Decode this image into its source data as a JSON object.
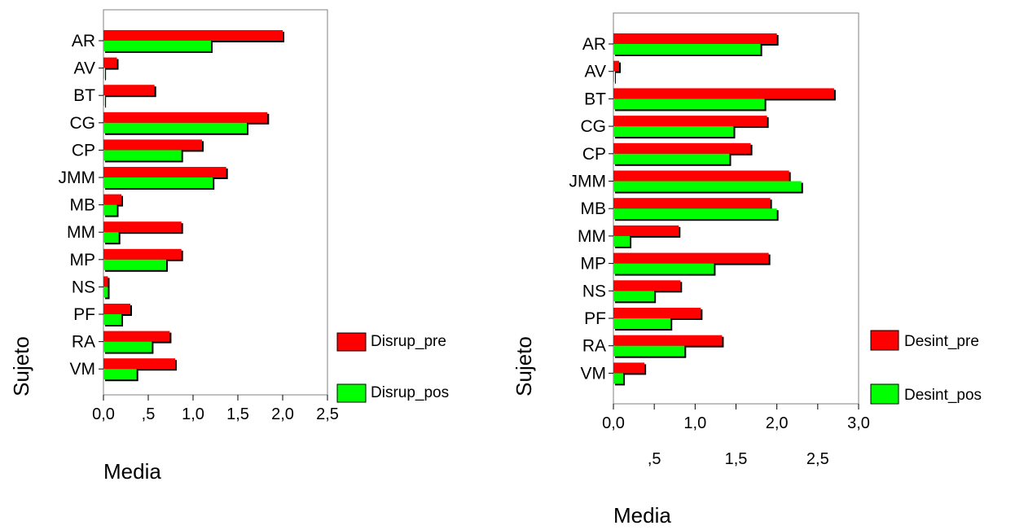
{
  "chart_data": [
    {
      "type": "bar",
      "orientation": "horizontal",
      "categories": [
        "AR",
        "AV",
        "BT",
        "CG",
        "CP",
        "JMM",
        "MB",
        "MM",
        "MP",
        "NS",
        "PF",
        "RA",
        "VM"
      ],
      "series": [
        {
          "name": "Disrup_pre",
          "color": "#ff0000",
          "values": [
            2.0,
            0.15,
            0.57,
            1.83,
            1.1,
            1.37,
            0.2,
            0.87,
            0.87,
            0.05,
            0.3,
            0.74,
            0.8
          ]
        },
        {
          "name": "Disrup_pos",
          "color": "#00ff00",
          "values": [
            1.2,
            0.01,
            0.01,
            1.6,
            0.87,
            1.22,
            0.15,
            0.17,
            0.7,
            0.05,
            0.2,
            0.54,
            0.37
          ]
        }
      ],
      "xlabel": "Media",
      "ylabel": "Sujeto",
      "xlim": [
        0,
        2.5
      ],
      "xticks": [
        "0,0",
        ",5",
        "1,0",
        "1,5",
        "2,0",
        "2,5"
      ],
      "xtick_values": [
        0,
        0.5,
        1.0,
        1.5,
        2.0,
        2.5
      ],
      "legend": "right"
    },
    {
      "type": "bar",
      "orientation": "horizontal",
      "categories": [
        "AR",
        "AV",
        "BT",
        "CG",
        "CP",
        "JMM",
        "MB",
        "MM",
        "MP",
        "NS",
        "PF",
        "RA",
        "VM"
      ],
      "series": [
        {
          "name": "Desint_pre",
          "color": "#ff0000",
          "values": [
            2.0,
            0.07,
            2.7,
            1.88,
            1.68,
            2.15,
            1.92,
            0.8,
            1.9,
            0.82,
            1.07,
            1.33,
            0.38
          ]
        },
        {
          "name": "Desint_pos",
          "color": "#00ff00",
          "values": [
            1.8,
            0.01,
            1.85,
            1.47,
            1.42,
            2.3,
            2.0,
            0.2,
            1.23,
            0.5,
            0.7,
            0.87,
            0.12
          ]
        }
      ],
      "xlabel": "Media",
      "ylabel": "Sujeto",
      "xlim": [
        0,
        3.0
      ],
      "xticks": [
        "0,0",
        ",5",
        "1,0",
        "1,5",
        "2,0",
        "2,5",
        "3,0"
      ],
      "xtick_values": [
        0,
        0.5,
        1.0,
        1.5,
        2.0,
        2.5,
        3.0
      ],
      "legend": "right"
    }
  ]
}
